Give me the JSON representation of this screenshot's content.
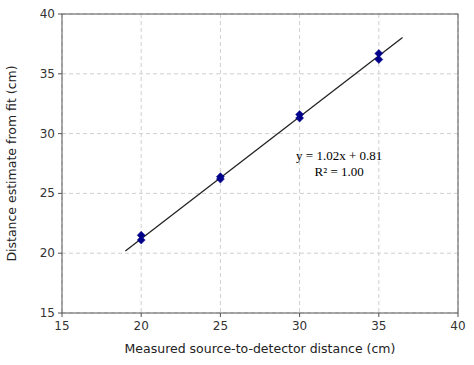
{
  "chart_data": {
    "type": "scatter",
    "xlabel": "Measured source-to-detector distance (cm)",
    "ylabel": "Distance estimate from fit (cm)",
    "xlim": [
      15,
      40
    ],
    "ylim": [
      15,
      40
    ],
    "xticks": [
      15,
      20,
      25,
      30,
      35,
      40
    ],
    "yticks": [
      15,
      20,
      25,
      30,
      35,
      40
    ],
    "grid": true,
    "series": [
      {
        "type": "scatter",
        "color": "#00008b",
        "marker": "diamond",
        "x": [
          20,
          25,
          30,
          35
        ],
        "values": [
          [
            21.1,
            21.5
          ],
          [
            26.2,
            26.4
          ],
          [
            31.3,
            31.6
          ],
          [
            36.2,
            36.7
          ]
        ]
      },
      {
        "type": "line",
        "color": "#222222",
        "line_style": "solid",
        "x": [
          19.0,
          36.5
        ],
        "values": [
          20.19,
          38.04
        ]
      }
    ],
    "annotations": [
      "y = 1.02x + 0.81",
      "R² = 1.00"
    ]
  }
}
